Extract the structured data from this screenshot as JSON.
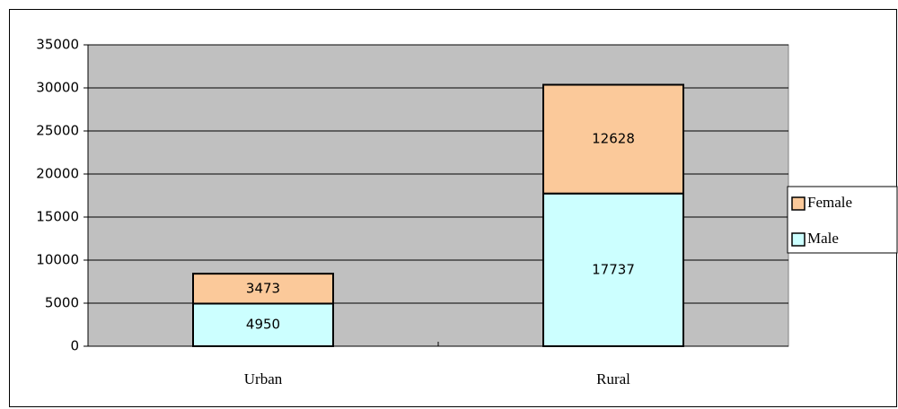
{
  "chart_data": {
    "type": "stacked_bar",
    "categories": [
      "Urban",
      "Rural"
    ],
    "series": [
      {
        "name": "Male",
        "color": "#ccffff",
        "values": [
          4950,
          17737
        ]
      },
      {
        "name": "Female",
        "color": "#fbc99a",
        "values": [
          3473,
          12628
        ]
      }
    ],
    "ylim": [
      0,
      35000
    ],
    "yticks": [
      0,
      5000,
      10000,
      15000,
      20000,
      25000,
      30000,
      35000
    ],
    "grid": true,
    "legend": "right"
  }
}
